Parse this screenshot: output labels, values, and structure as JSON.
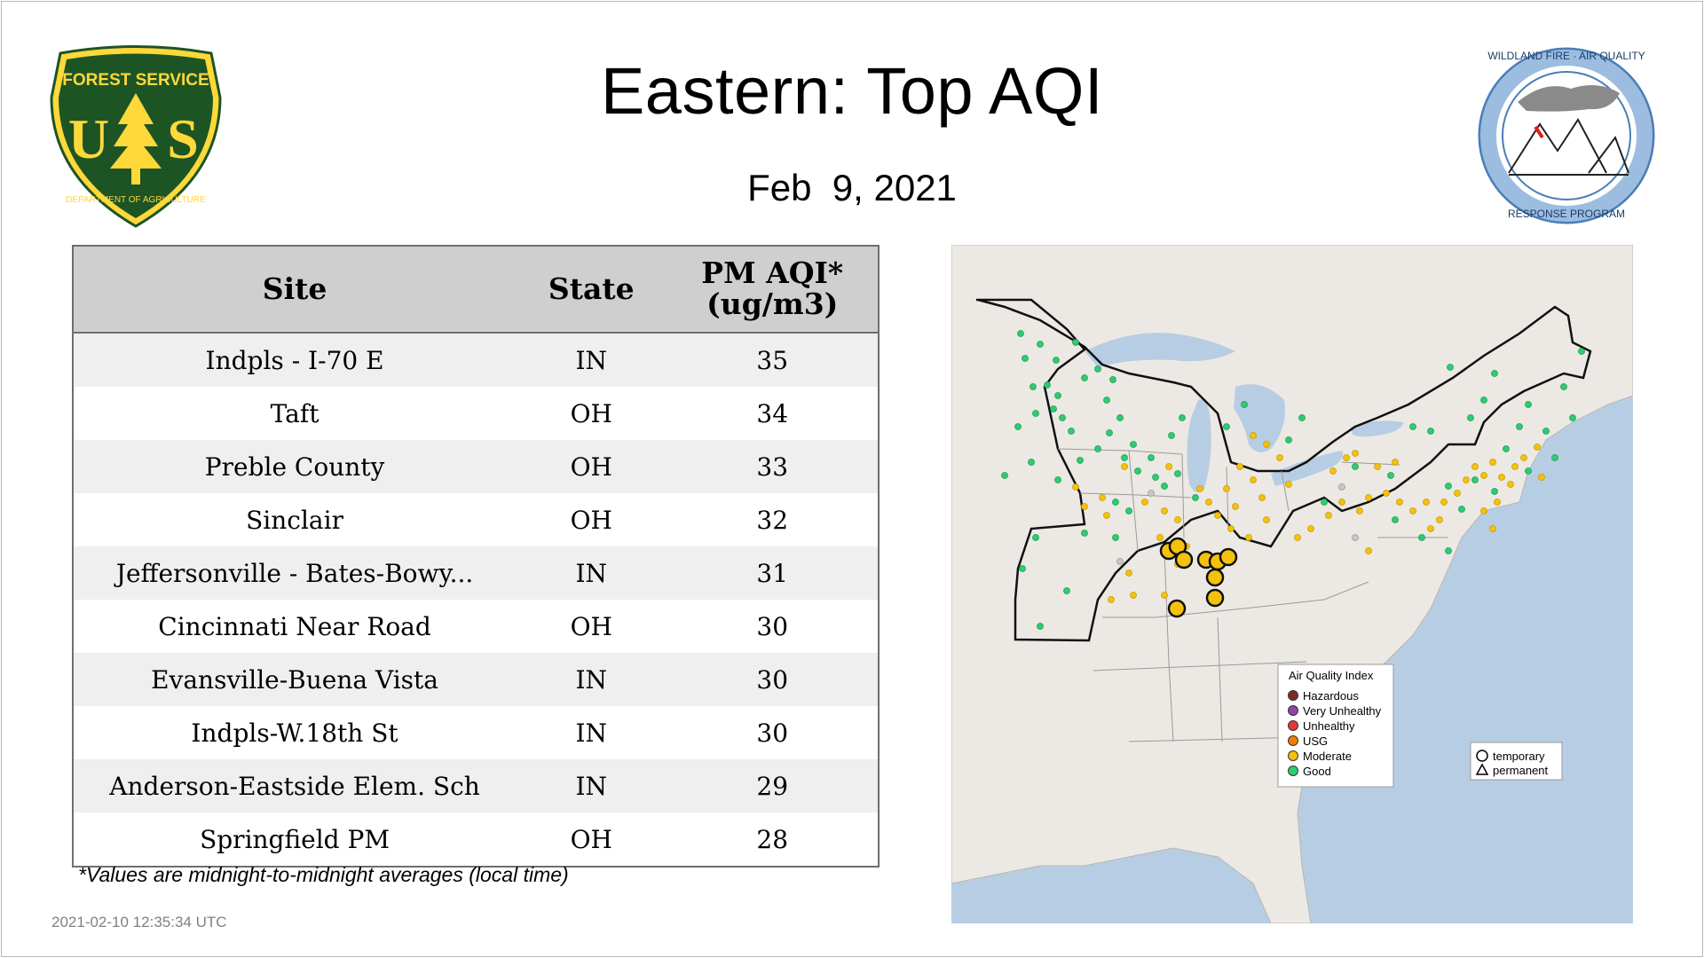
{
  "header": {
    "title": "Eastern: Top AQI",
    "date": "Feb  9, 2021"
  },
  "logos": {
    "left": {
      "line1": "FOREST SERVICE",
      "line2": "U",
      "line3": "S",
      "line4": "DEPARTMENT OF AGRICULTURE",
      "color": "#1d5424",
      "accent": "#ffd83a"
    },
    "right": {
      "top": "WILDLAND FIRE · AIR QUALITY",
      "bottom": "RESPONSE PROGRAM",
      "color": "#5c8fc7"
    }
  },
  "table": {
    "columns": [
      "Site",
      "State",
      "PM AQI*",
      "(ug/m3)"
    ],
    "rows": [
      {
        "site": "Indpls - I-70 E",
        "state": "IN",
        "value": "35"
      },
      {
        "site": "Taft",
        "state": "OH",
        "value": "34"
      },
      {
        "site": "Preble County",
        "state": "OH",
        "value": "33"
      },
      {
        "site": "Sinclair",
        "state": "OH",
        "value": "32"
      },
      {
        "site": "Jeffersonville - Bates-Bowy...",
        "state": "IN",
        "value": "31"
      },
      {
        "site": "Cincinnati Near Road",
        "state": "OH",
        "value": "30"
      },
      {
        "site": "Evansville-Buena Vista",
        "state": "IN",
        "value": "30"
      },
      {
        "site": "Indpls-W.18th St",
        "state": "IN",
        "value": "30"
      },
      {
        "site": "Anderson-Eastside Elem. Sch",
        "state": "IN",
        "value": "29"
      },
      {
        "site": "Springfield PM",
        "state": "OH",
        "value": "28"
      }
    ]
  },
  "footnote": "*Values are midnight-to-midnight averages (local time)",
  "timestamp": "2021-02-10 12:35:34 UTC",
  "legend": {
    "title": "Air Quality Index",
    "categories": [
      {
        "label": "Hazardous",
        "color": "#7e2b28"
      },
      {
        "label": "Very Unhealthy",
        "color": "#8e44ad"
      },
      {
        "label": "Unhealthy",
        "color": "#e53935"
      },
      {
        "label": "USG",
        "color": "#f57c00"
      },
      {
        "label": "Moderate",
        "color": "#f4c20d"
      },
      {
        "label": "Good",
        "color": "#2ecc71"
      }
    ],
    "shapes": [
      {
        "label": "temporary"
      },
      {
        "label": "permanent"
      }
    ]
  },
  "colors": {
    "water": "#b7cde3",
    "land": "#ece9e4",
    "good": "#2ecc71",
    "moderate": "#f4c20d",
    "grey": "#c8c8c8"
  }
}
